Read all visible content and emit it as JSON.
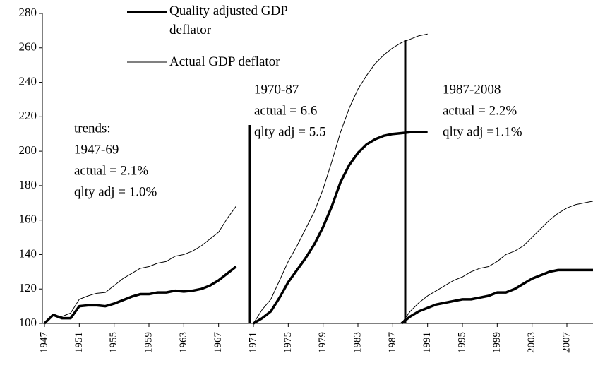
{
  "chart_data": {
    "type": "line",
    "xlim": [
      1947,
      2010
    ],
    "xticks": [
      1947,
      1951,
      1955,
      1959,
      1963,
      1967,
      1971,
      1975,
      1979,
      1983,
      1987,
      1991,
      1995,
      1999,
      2003,
      2007
    ],
    "ylim": [
      100,
      280
    ],
    "yticks": [
      100,
      120,
      140,
      160,
      180,
      200,
      220,
      240,
      260,
      280
    ],
    "grid": false,
    "series": [
      {
        "name": "Quality adjusted GDP deflator",
        "color": "#000000",
        "linewidth": 3.5,
        "segments": [
          {
            "x": [
              1947,
              1948,
              1949,
              1950,
              1951,
              1952,
              1953,
              1954,
              1955,
              1956,
              1957,
              1958,
              1959,
              1960,
              1961,
              1962,
              1963,
              1964,
              1965,
              1966,
              1967,
              1968,
              1969
            ],
            "values": [
              100,
              105,
              103,
              103,
              110,
              110.5,
              110.5,
              110,
              111.5,
              113.5,
              115.5,
              117,
              117,
              118,
              118,
              119,
              118.5,
              119,
              120,
              122,
              125,
              129,
              133
            ]
          },
          {
            "x": [
              1971,
              1972,
              1973,
              1974,
              1975,
              1976,
              1977,
              1978,
              1979,
              1980,
              1981,
              1982,
              1983,
              1984,
              1985,
              1986,
              1987,
              1988,
              1989,
              1990,
              1991
            ],
            "values": [
              100,
              103,
              107,
              115,
              124,
              131,
              138,
              146,
              156,
              168,
              182,
              192,
              199,
              204,
              207,
              209,
              210,
              210.5,
              211,
              211,
              211
            ]
          },
          {
            "x": [
              1988,
              1989,
              1990,
              1991,
              1992,
              1993,
              1994,
              1995,
              1996,
              1997,
              1998,
              1999,
              2000,
              2001,
              2002,
              2003,
              2004,
              2005,
              2006,
              2007,
              2008,
              2009,
              2010
            ],
            "values": [
              100,
              104,
              107,
              109,
              111,
              112,
              113,
              114,
              114,
              115,
              116,
              118,
              118,
              120,
              123,
              126,
              128,
              130,
              131,
              131,
              131,
              131,
              131
            ]
          }
        ]
      },
      {
        "name": "Actual GDP deflator",
        "color": "#000000",
        "linewidth": 1,
        "segments": [
          {
            "x": [
              1947,
              1948,
              1949,
              1950,
              1951,
              1952,
              1953,
              1954,
              1955,
              1956,
              1957,
              1958,
              1959,
              1960,
              1961,
              1962,
              1963,
              1964,
              1965,
              1966,
              1967,
              1968,
              1969
            ],
            "values": [
              100,
              105,
              104,
              106,
              114,
              116,
              117.5,
              118,
              122,
              126,
              129,
              132,
              133,
              135,
              136,
              139,
              140,
              142,
              145,
              149,
              153,
              161,
              168
            ]
          },
          {
            "x": [
              1971,
              1972,
              1973,
              1974,
              1975,
              1976,
              1977,
              1978,
              1979,
              1980,
              1981,
              1982,
              1983,
              1984,
              1985,
              1986,
              1987,
              1988,
              1989,
              1990,
              1991
            ],
            "values": [
              100,
              108,
              114,
              125,
              136,
              145,
              155,
              165,
              178,
              194,
              211,
              225,
              236,
              244,
              251,
              256,
              260,
              263,
              265,
              267,
              268
            ]
          },
          {
            "x": [
              1988,
              1989,
              1990,
              1991,
              1992,
              1993,
              1994,
              1995,
              1996,
              1997,
              1998,
              1999,
              2000,
              2001,
              2002,
              2003,
              2004,
              2005,
              2006,
              2007,
              2008,
              2009,
              2010
            ],
            "values": [
              100,
              107,
              112,
              116,
              119,
              122,
              125,
              127,
              130,
              132,
              133,
              136,
              140,
              142,
              145,
              150,
              155,
              160,
              164,
              167,
              169,
              170,
              171
            ]
          }
        ]
      }
    ],
    "annotations": [
      [
        "trends:",
        "1947-69",
        "actual = 2.1%",
        "qlty adj = 1.0%"
      ],
      [
        "1970-87",
        "actual = 6.6",
        "qlty adj = 5.5"
      ],
      [
        "1987-2008",
        "actual = 2.2%",
        "qlty adj =1.1%"
      ]
    ]
  }
}
